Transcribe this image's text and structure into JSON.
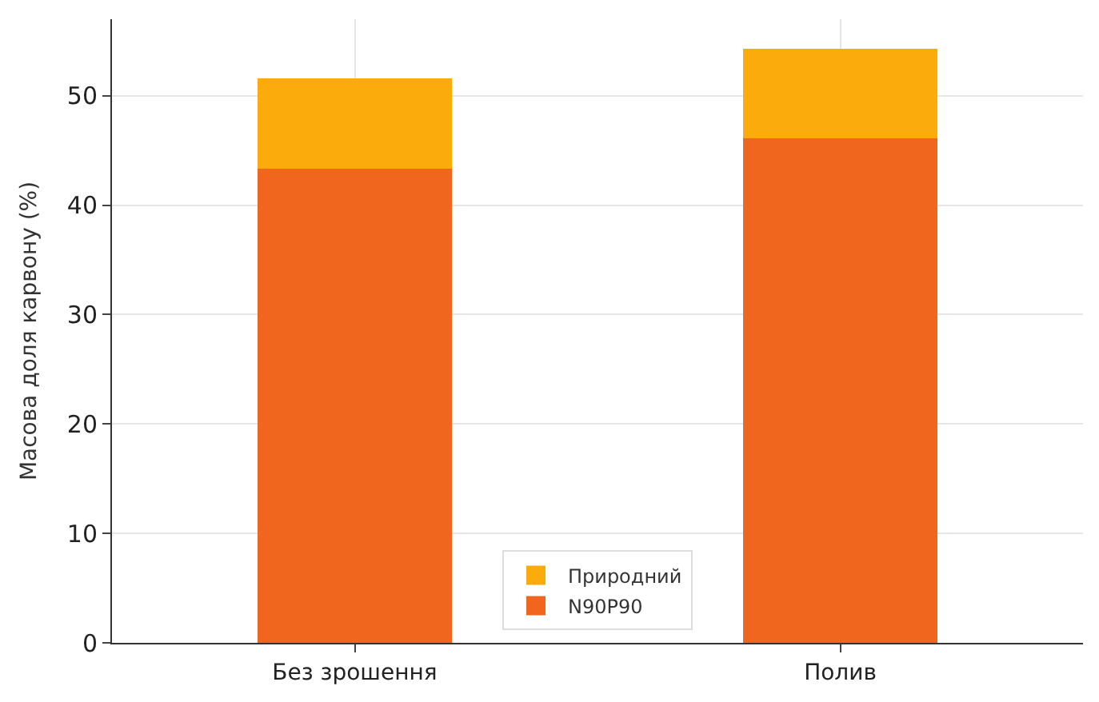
{
  "chart_data": {
    "type": "bar",
    "stacked": true,
    "ylabel": "Масова доля карвону (%)",
    "categories": [
      "Без зрошення",
      "Полив"
    ],
    "series": [
      {
        "name": "N90P90",
        "color": "#f0661f",
        "values": [
          43.3,
          46.1
        ]
      },
      {
        "name": "Природний",
        "color": "#fbab0b",
        "values": [
          8.3,
          8.2
        ]
      }
    ],
    "ylim": [
      0,
      57
    ],
    "yticks": [
      0,
      10,
      20,
      30,
      40,
      50
    ],
    "grid": true,
    "legend": "bottom"
  }
}
